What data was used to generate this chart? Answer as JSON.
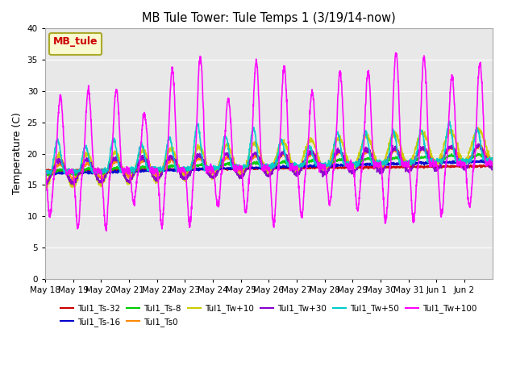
{
  "title": "MB Tule Tower: Tule Temps 1 (3/19/14-now)",
  "ylabel": "Temperature (C)",
  "ylim": [
    0,
    40
  ],
  "yticks": [
    0,
    5,
    10,
    15,
    20,
    25,
    30,
    35,
    40
  ],
  "bg_color": "#e8e8e8",
  "series": [
    {
      "label": "Tul1_Ts-32",
      "color": "#cc0000",
      "lw": 1.2
    },
    {
      "label": "Tul1_Ts-16",
      "color": "#0000cc",
      "lw": 1.2
    },
    {
      "label": "Tul1_Ts-8",
      "color": "#00cc00",
      "lw": 1.2
    },
    {
      "label": "Tul1_Ts0",
      "color": "#ff8800",
      "lw": 1.2
    },
    {
      "label": "Tul1_Tw+10",
      "color": "#cccc00",
      "lw": 1.2
    },
    {
      "label": "Tul1_Tw+30",
      "color": "#8800cc",
      "lw": 1.2
    },
    {
      "label": "Tul1_Tw+50",
      "color": "#00cccc",
      "lw": 1.2
    },
    {
      "label": "Tul1_Tw+100",
      "color": "#ff00ff",
      "lw": 1.2
    }
  ],
  "xtick_labels": [
    "May 18",
    "May 19",
    "May 20",
    "May 21",
    "May 22",
    "May 23",
    "May 24",
    "May 25",
    "May 26",
    "May 27",
    "May 28",
    "May 29",
    "May 30",
    "May 31",
    "Jun 1",
    "Jun 2"
  ],
  "legend_label": "MB_tule",
  "legend_fc": "#ffffcc",
  "legend_ec": "#999900",
  "legend_tc": "#cc0000"
}
